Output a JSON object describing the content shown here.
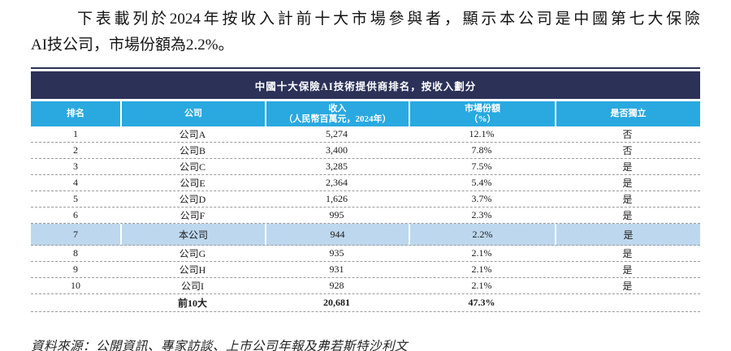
{
  "colors": {
    "navy": "#2B3157",
    "cyan": "#29A9E0",
    "highlight": "#BDD7EE"
  },
  "intro": {
    "line1": "下表載列於2024年按收入計前十大市場參與者，顯示本公司是中國第七大保險",
    "line2": "AI技公司，市場份額為2.2%。"
  },
  "table": {
    "title": "中國十大保險AI技術提供商排名，按收入劃分",
    "columns": [
      {
        "line1": "排名",
        "line2": ""
      },
      {
        "line1": "公司",
        "line2": ""
      },
      {
        "line1": "收入",
        "line2": "（人民幣百萬元，2024年）"
      },
      {
        "line1": "市場份額",
        "line2": "（%）"
      },
      {
        "line1": "是否獨立",
        "line2": ""
      }
    ],
    "rows": [
      {
        "rank": "1",
        "company": "公司A",
        "revenue": "5,274",
        "share": "12.1%",
        "independent": "否",
        "highlight": false
      },
      {
        "rank": "2",
        "company": "公司B",
        "revenue": "3,400",
        "share": "7.8%",
        "independent": "否",
        "highlight": false
      },
      {
        "rank": "3",
        "company": "公司C",
        "revenue": "3,285",
        "share": "7.5%",
        "independent": "是",
        "highlight": false
      },
      {
        "rank": "4",
        "company": "公司E",
        "revenue": "2,364",
        "share": "5.4%",
        "independent": "是",
        "highlight": false
      },
      {
        "rank": "5",
        "company": "公司D",
        "revenue": "1,626",
        "share": "3.7%",
        "independent": "是",
        "highlight": false
      },
      {
        "rank": "6",
        "company": "公司F",
        "revenue": "995",
        "share": "2.3%",
        "independent": "是",
        "highlight": false
      },
      {
        "rank": "7",
        "company": "本公司",
        "revenue": "944",
        "share": "2.2%",
        "independent": "是",
        "highlight": true
      },
      {
        "rank": "8",
        "company": "公司G",
        "revenue": "935",
        "share": "2.1%",
        "independent": "是",
        "highlight": false
      },
      {
        "rank": "9",
        "company": "公司H",
        "revenue": "931",
        "share": "2.1%",
        "independent": "是",
        "highlight": false
      },
      {
        "rank": "10",
        "company": "公司I",
        "revenue": "928",
        "share": "2.1%",
        "independent": "是",
        "highlight": false
      }
    ],
    "total": {
      "rank": "",
      "company": "前10大",
      "revenue": "20,681",
      "share": "47.3%",
      "independent": ""
    }
  },
  "source": "資料來源：公開資訊、專家訪談、上市公司年報及弗若斯特沙利文"
}
